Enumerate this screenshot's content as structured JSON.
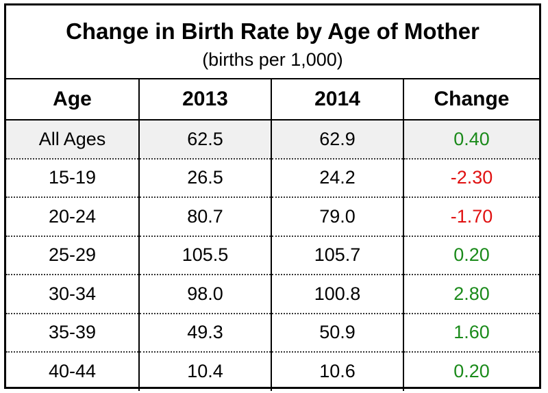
{
  "chart_data": {
    "type": "table",
    "title": "Change in Birth Rate by Age of Mother",
    "subtitle": "(births per 1,000)",
    "columns": [
      "Age",
      "2013",
      "2014",
      "Change"
    ],
    "rows": [
      {
        "age": "All Ages",
        "y2013": "62.5",
        "y2014": "62.9",
        "change": "0.40",
        "sign": "pos"
      },
      {
        "age": "15-19",
        "y2013": "26.5",
        "y2014": "24.2",
        "change": "-2.30",
        "sign": "neg"
      },
      {
        "age": "20-24",
        "y2013": "80.7",
        "y2014": "79.0",
        "change": "-1.70",
        "sign": "neg"
      },
      {
        "age": "25-29",
        "y2013": "105.5",
        "y2014": "105.7",
        "change": "0.20",
        "sign": "pos"
      },
      {
        "age": "30-34",
        "y2013": "98.0",
        "y2014": "100.8",
        "change": "2.80",
        "sign": "pos"
      },
      {
        "age": "35-39",
        "y2013": "49.3",
        "y2014": "50.9",
        "change": "1.60",
        "sign": "pos"
      },
      {
        "age": "40-44",
        "y2013": "10.4",
        "y2014": "10.6",
        "change": "0.20",
        "sign": "pos"
      }
    ],
    "colors": {
      "positive": "#1a8a1a",
      "negative": "#e01010",
      "highlight_row": "#f0f0f0"
    }
  }
}
